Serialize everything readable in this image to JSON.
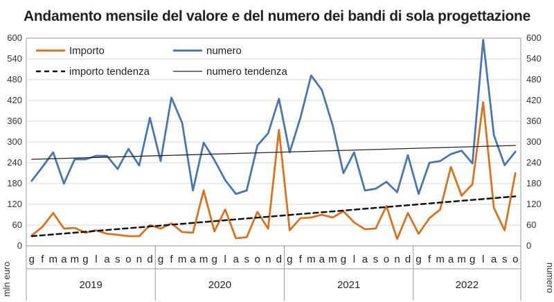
{
  "chart_data": {
    "type": "line",
    "title": "Andamento mensile del valore e del numero dei bandi di sola progettazione",
    "ylabel_left": "mln euro",
    "ylabel_right": "numero",
    "ylim_left": [
      0,
      600
    ],
    "ylim_right": [
      0,
      600
    ],
    "yticks_left": [
      "0",
      "60",
      "120",
      "180",
      "240",
      "300",
      "360",
      "420",
      "480",
      "540",
      "600"
    ],
    "yticks_right": [
      "0",
      "60",
      "120",
      "180",
      "240",
      "300",
      "360",
      "420",
      "480",
      "540",
      "600"
    ],
    "grid": "horizontal",
    "legend_position": "top-left",
    "months": [
      "g",
      "f",
      "m",
      "a",
      "m",
      "g",
      "l",
      "a",
      "s",
      "o",
      "n",
      "d",
      "g",
      "f",
      "m",
      "a",
      "m",
      "g",
      "l",
      "a",
      "s",
      "o",
      "n",
      "d",
      "g",
      "f",
      "m",
      "a",
      "m",
      "g",
      "l",
      "a",
      "s",
      "o",
      "n",
      "d",
      "g",
      "f",
      "m",
      "a",
      "m",
      "g",
      "l",
      "a",
      "s",
      "o"
    ],
    "years": [
      {
        "label": "2019",
        "start": 0,
        "count": 12
      },
      {
        "label": "2020",
        "start": 12,
        "count": 12
      },
      {
        "label": "2021",
        "start": 24,
        "count": 12
      },
      {
        "label": "2022",
        "start": 36,
        "count": 10
      }
    ],
    "series": [
      {
        "name": "Importo",
        "axis": "left",
        "color": "#d9721e",
        "style": "solid",
        "values": [
          30,
          55,
          95,
          50,
          52,
          38,
          45,
          35,
          32,
          28,
          28,
          60,
          50,
          65,
          40,
          38,
          160,
          42,
          105,
          22,
          25,
          98,
          50,
          335,
          45,
          80,
          82,
          90,
          82,
          100,
          68,
          48,
          50,
          115,
          20,
          95,
          35,
          80,
          105,
          228,
          145,
          178,
          415,
          110,
          45,
          210
        ]
      },
      {
        "name": "numero",
        "axis": "right",
        "color": "#4a76b0",
        "style": "solid",
        "values": [
          188,
          228,
          270,
          180,
          250,
          250,
          260,
          260,
          222,
          280,
          232,
          370,
          245,
          428,
          355,
          160,
          298,
          248,
          190,
          150,
          160,
          290,
          325,
          425,
          270,
          370,
          492,
          450,
          348,
          210,
          270,
          160,
          165,
          185,
          155,
          262,
          150,
          240,
          245,
          265,
          275,
          238,
          595,
          320,
          233,
          272
        ]
      },
      {
        "name": "importo tendenza",
        "axis": "left",
        "color": "#111111",
        "style": "dashed",
        "values": [
          28,
          143
        ]
      },
      {
        "name": "numero tendenza",
        "axis": "right",
        "color": "#222222",
        "style": "thin",
        "values": [
          250,
          290
        ]
      }
    ]
  }
}
